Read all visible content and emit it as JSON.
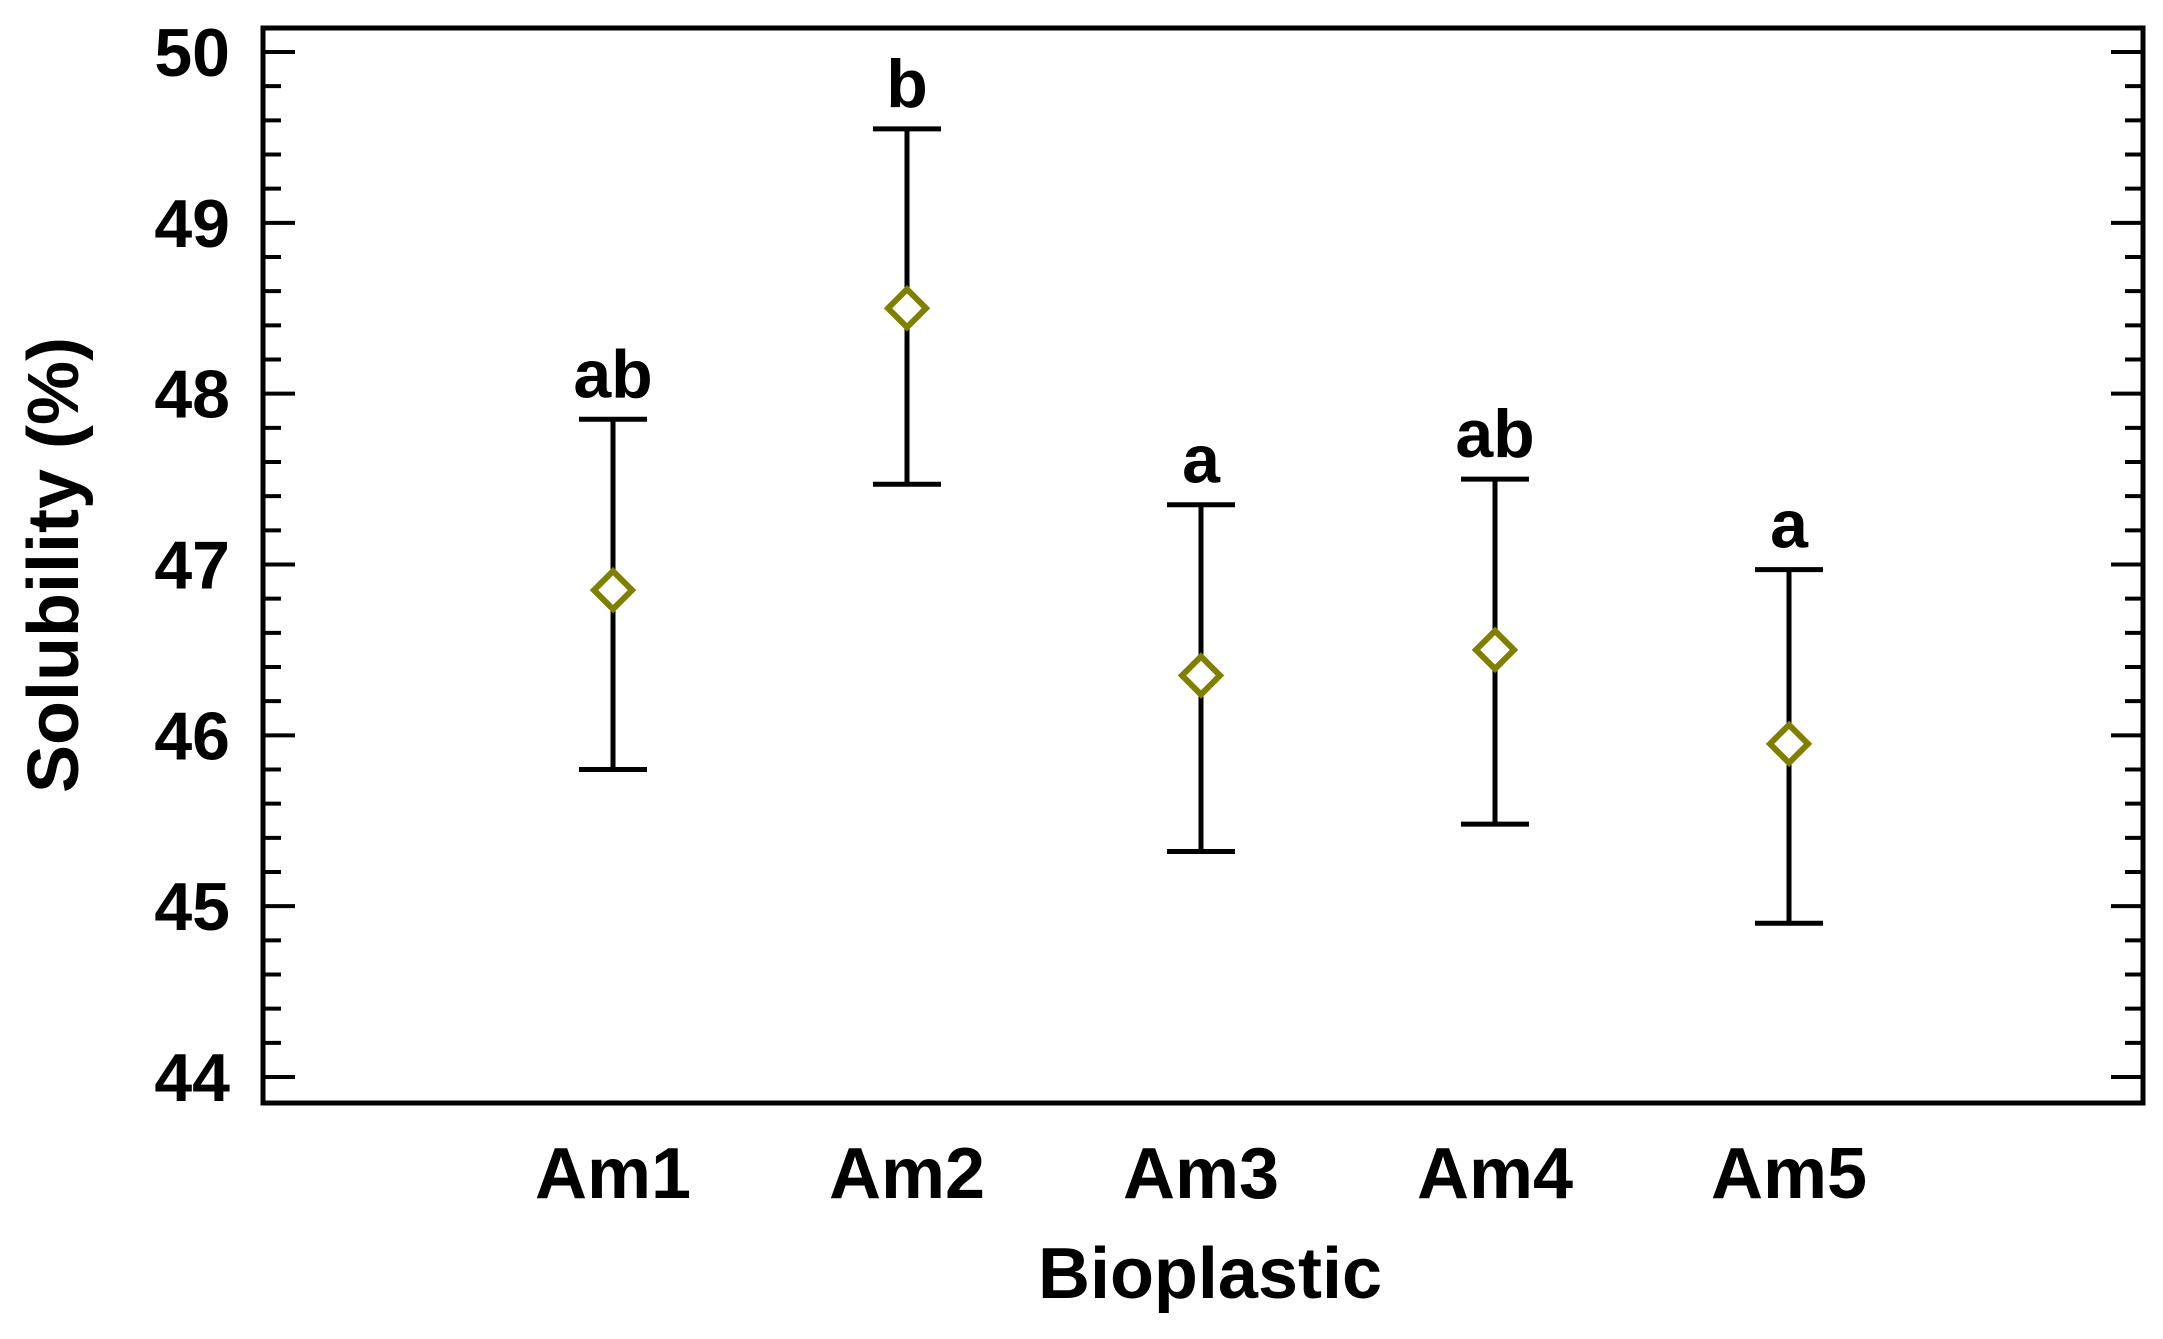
{
  "chart_data": {
    "type": "scatter",
    "title": "",
    "xlabel": "Bioplastic",
    "ylabel": "Solubility (%)",
    "categories": [
      "Am1",
      "Am2",
      "Am3",
      "Am4",
      "Am5"
    ],
    "ylim": [
      44,
      50
    ],
    "yticks": [
      "44",
      "45",
      "46",
      "47",
      "48",
      "49",
      "50"
    ],
    "series": [
      {
        "values": [
          46.85,
          48.5,
          46.35,
          46.5,
          45.95
        ],
        "lower": [
          45.8,
          47.47,
          45.32,
          45.48,
          44.9
        ],
        "upper": [
          47.85,
          49.55,
          47.35,
          47.5,
          46.97
        ],
        "groups": [
          "ab",
          "b",
          "a",
          "ab",
          "a"
        ]
      }
    ],
    "marker": "diamond",
    "marker_color": "#808000",
    "grid": false,
    "legend": "none"
  }
}
